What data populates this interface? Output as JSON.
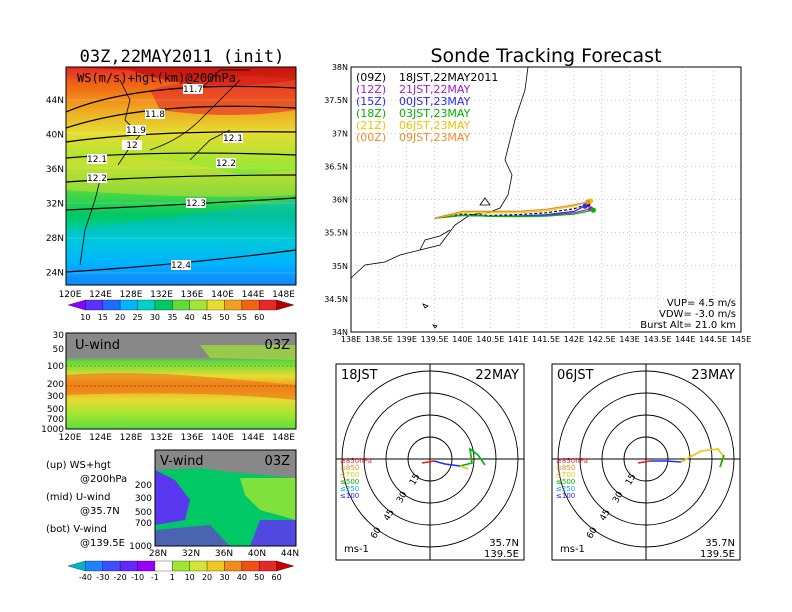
{
  "left": {
    "title": "03Z,22MAY2011 (init)",
    "panel_label": "WS(m/s)+hgt(km)@200hPa",
    "lat_ticks": [
      "44N",
      "40N",
      "36N",
      "32N",
      "28N",
      "24N"
    ],
    "lon_ticks": [
      "120E",
      "124E",
      "128E",
      "132E",
      "136E",
      "140E",
      "144E",
      "148E"
    ],
    "contour_labels": [
      "11.7",
      "11.8",
      "11.9",
      "12",
      "12.1",
      "12.1",
      "12.2",
      "12.2",
      "12.3",
      "12.4"
    ],
    "colorbar_labels": [
      "10",
      "15",
      "20",
      "25",
      "30",
      "35",
      "40",
      "45",
      "50",
      "55",
      "60"
    ],
    "colorbar_colors": [
      "#8c00ff",
      "#5a32ff",
      "#1e6bff",
      "#00b4ff",
      "#00d2c8",
      "#00c864",
      "#5fdc3c",
      "#a0e632",
      "#e6dc32",
      "#f0a01e",
      "#f06414",
      "#e62828",
      "#b40000"
    ],
    "uwind": {
      "label": "U-wind",
      "time": "03Z",
      "p_ticks": [
        "30",
        "50",
        "100",
        "200",
        "300",
        "500",
        "700",
        "1000"
      ],
      "lon_ticks": [
        "120E",
        "124E",
        "128E",
        "132E",
        "136E",
        "140E",
        "144E",
        "148E"
      ]
    },
    "vwind": {
      "label": "V-wind",
      "time": "03Z",
      "p_ticks": [
        "200",
        "300",
        "500",
        "700",
        "1000"
      ],
      "lat_ticks": [
        "28N",
        "32N",
        "36N",
        "40N",
        "44N"
      ]
    },
    "legend": [
      "(up) WS+hgt",
      "@200hPa",
      "(mid) U-wind",
      "@35.7N",
      "(bot) V-wind",
      "@139.5E"
    ],
    "cb2_labels": [
      "-40",
      "-30",
      "-20",
      "-10",
      "-1",
      "1",
      "10",
      "20",
      "30",
      "40",
      "50",
      "60"
    ],
    "cb2_colors": [
      "#00b4c8",
      "#1e82ff",
      "#3c50ff",
      "#6428ff",
      "#9600ff",
      "#ffffff",
      "#a0e632",
      "#d2e632",
      "#f0c81e",
      "#f08c1e",
      "#f05014",
      "#e62828",
      "#c80000"
    ]
  },
  "forecast": {
    "title": "Sonde Tracking Forecast",
    "legend": [
      {
        "code": "(09Z)",
        "time": "18JST,22MAY2011",
        "color": "#000000"
      },
      {
        "code": "(12Z)",
        "time": "21JST,22MAY",
        "color": "#a020c8"
      },
      {
        "code": "(15Z)",
        "time": "00JST,23MAY",
        "color": "#2828ff"
      },
      {
        "code": "(18Z)",
        "time": "03JST,23MAY",
        "color": "#00b400"
      },
      {
        "code": "(21Z)",
        "time": "06JST,23MAY",
        "color": "#e6c800"
      },
      {
        "code": "(00Z)",
        "time": "09JST,23MAY",
        "color": "#f08c28"
      }
    ],
    "lat_ticks": [
      "38N",
      "37.5N",
      "37N",
      "36.5N",
      "36N",
      "35.5N",
      "35N",
      "34.5N",
      "34N"
    ],
    "lon_ticks": [
      "138E",
      "138.5E",
      "139E",
      "139.5E",
      "140E",
      "140.5E",
      "141E",
      "141.5E",
      "142E",
      "142.5E",
      "143E",
      "143.5E",
      "144E",
      "144.5E",
      "145E"
    ],
    "params": [
      "VUP= 4.5 m/s",
      "VDW= -3.0 m/s",
      "Burst Alt= 21.0 km"
    ]
  },
  "hodo1": {
    "time": "18JST",
    "date": "22MAY",
    "lat": "35.7N",
    "lon": "139.5E",
    "units": "ms-1",
    "rings": [
      "15",
      "30",
      "45",
      "60"
    ],
    "levels": [
      "≥850hPa",
      "≤850",
      "≤700",
      "≤500",
      "≤250",
      "≤100"
    ],
    "level_colors": [
      "#e61e1e",
      "#f08c28",
      "#e6c800",
      "#00b400",
      "#00aaff",
      "#2828ff"
    ]
  },
  "hodo2": {
    "time": "06JST",
    "date": "23MAY",
    "lat": "35.7N",
    "lon": "139.5E",
    "units": "ms-1",
    "rings": [
      "15",
      "30",
      "45",
      "60"
    ],
    "levels": [
      "≥850hPa",
      "≤850",
      "≤700",
      "≤500",
      "≤250",
      "≤100"
    ],
    "level_colors": [
      "#e61e1e",
      "#f08c28",
      "#e6c800",
      "#00b400",
      "#00aaff",
      "#2828ff"
    ]
  },
  "chart_data": {
    "type": "line",
    "title": "Sonde Tracking Forecast",
    "xlabel": "",
    "ylabel": "",
    "xlim": [
      138,
      145
    ],
    "ylim": [
      34,
      38
    ],
    "series": [
      {
        "name": "(09Z) 18JST,22MAY2011",
        "x": [
          139.5,
          140.0,
          140.5,
          141.0,
          141.5,
          142.0,
          142.25
        ],
        "y": [
          35.72,
          35.78,
          35.76,
          35.77,
          35.8,
          35.86,
          35.93
        ]
      },
      {
        "name": "(12Z) 21JST,22MAY",
        "x": [
          139.5,
          140.0,
          140.5,
          141.0,
          141.5,
          142.0,
          142.3
        ],
        "y": [
          35.72,
          35.76,
          35.75,
          35.75,
          35.76,
          35.8,
          35.86
        ]
      },
      {
        "name": "(15Z) 00JST,23MAY",
        "x": [
          139.5,
          140.0,
          140.5,
          141.0,
          141.5,
          142.0,
          142.2
        ],
        "y": [
          35.72,
          35.76,
          35.75,
          35.75,
          35.77,
          35.82,
          35.9
        ]
      },
      {
        "name": "(18Z) 03JST,23MAY",
        "x": [
          139.5,
          140.0,
          140.5,
          141.0,
          141.5,
          142.0,
          142.35
        ],
        "y": [
          35.72,
          35.76,
          35.75,
          35.74,
          35.75,
          35.78,
          35.84
        ]
      },
      {
        "name": "(21Z) 06JST,23MAY",
        "x": [
          139.5,
          140.0,
          140.5,
          141.0,
          141.5,
          142.0,
          142.3
        ],
        "y": [
          35.72,
          35.8,
          35.8,
          35.8,
          35.83,
          35.9,
          35.98
        ]
      },
      {
        "name": "(00Z) 09JST,23MAY",
        "x": [
          139.5,
          140.0,
          140.5,
          141.0,
          141.5,
          142.0,
          142.25
        ],
        "y": [
          35.72,
          35.82,
          35.82,
          35.82,
          35.85,
          35.92,
          35.96
        ]
      }
    ]
  }
}
